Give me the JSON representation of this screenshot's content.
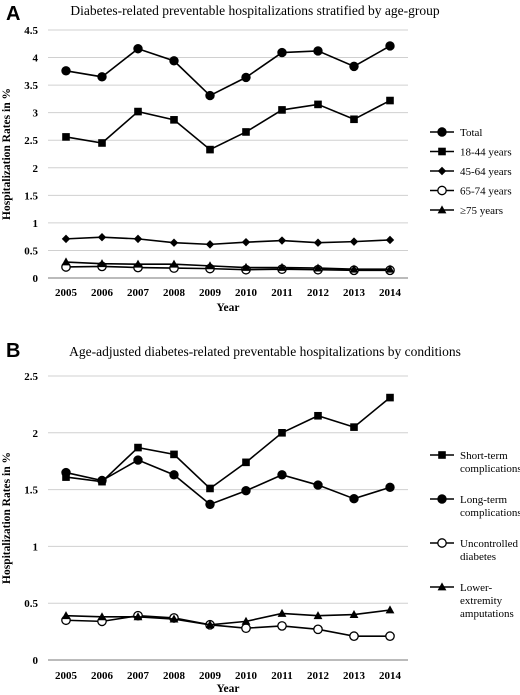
{
  "chart_data": [
    {
      "panel": "A",
      "type": "line",
      "title": "Diabetes-related preventable hospitalizations stratified by age-group",
      "xlabel": "Year",
      "ylabel": "Hospitalization Rates in %",
      "x": [
        2005,
        2006,
        2007,
        2008,
        2009,
        2010,
        2011,
        2012,
        2013,
        2014
      ],
      "ylim": [
        0,
        4.5
      ],
      "yticks": [
        "0",
        "0.5",
        "1",
        "1.5",
        "2",
        "2.5",
        "3",
        "3.5",
        "4",
        "4.5"
      ],
      "grid": true,
      "legend": "right",
      "series": [
        {
          "name": "Total",
          "marker": "circle-filled",
          "values": [
            3.76,
            3.65,
            4.16,
            3.94,
            3.31,
            3.64,
            4.09,
            4.12,
            3.84,
            4.21
          ]
        },
        {
          "name": "18-44 years",
          "marker": "square-filled",
          "values": [
            2.56,
            2.45,
            3.02,
            2.87,
            2.33,
            2.65,
            3.05,
            3.15,
            2.88,
            3.22
          ]
        },
        {
          "name": "45-64 years",
          "marker": "diamond-filled",
          "values": [
            0.71,
            0.74,
            0.71,
            0.64,
            0.61,
            0.65,
            0.68,
            0.64,
            0.66,
            0.69
          ]
        },
        {
          "name": "65-74 years",
          "marker": "circle-open",
          "values": [
            0.2,
            0.21,
            0.19,
            0.18,
            0.17,
            0.15,
            0.16,
            0.15,
            0.14,
            0.14
          ]
        },
        {
          "name": "≥75 years",
          "marker": "triangle-filled",
          "values": [
            0.29,
            0.26,
            0.25,
            0.25,
            0.22,
            0.19,
            0.19,
            0.18,
            0.16,
            0.16
          ]
        }
      ]
    },
    {
      "panel": "B",
      "type": "line",
      "title": "Age-adjusted diabetes-related preventable hospitalizations by conditions",
      "xlabel": "Year",
      "ylabel": "Hospitalization Rates in %",
      "x": [
        2005,
        2006,
        2007,
        2008,
        2009,
        2010,
        2011,
        2012,
        2013,
        2014
      ],
      "ylim": [
        0,
        2.5
      ],
      "yticks": [
        "0",
        "0.5",
        "1",
        "1.5",
        "2",
        "2.5"
      ],
      "grid": true,
      "legend": "right",
      "series": [
        {
          "name": "Short-term complications",
          "label_lines": [
            "Short-term",
            "complications"
          ],
          "marker": "square-filled",
          "values": [
            1.61,
            1.57,
            1.87,
            1.81,
            1.51,
            1.74,
            2.0,
            2.15,
            2.05,
            2.31
          ]
        },
        {
          "name": "Long-term complications",
          "label_lines": [
            "Long-term",
            "complications"
          ],
          "marker": "circle-filled",
          "values": [
            1.65,
            1.58,
            1.76,
            1.63,
            1.37,
            1.49,
            1.63,
            1.54,
            1.42,
            1.52
          ]
        },
        {
          "name": "Uncontrolled diabetes",
          "label_lines": [
            "Uncontrolled",
            "diabetes"
          ],
          "marker": "circle-open",
          "values": [
            0.35,
            0.34,
            0.39,
            0.37,
            0.31,
            0.28,
            0.3,
            0.27,
            0.21,
            0.21
          ]
        },
        {
          "name": "Lower-extremity amputations",
          "label_lines": [
            "Lower-",
            "extremity",
            "amputations"
          ],
          "marker": "triangle-filled",
          "values": [
            0.39,
            0.38,
            0.38,
            0.36,
            0.31,
            0.34,
            0.41,
            0.39,
            0.4,
            0.44
          ]
        }
      ]
    }
  ]
}
